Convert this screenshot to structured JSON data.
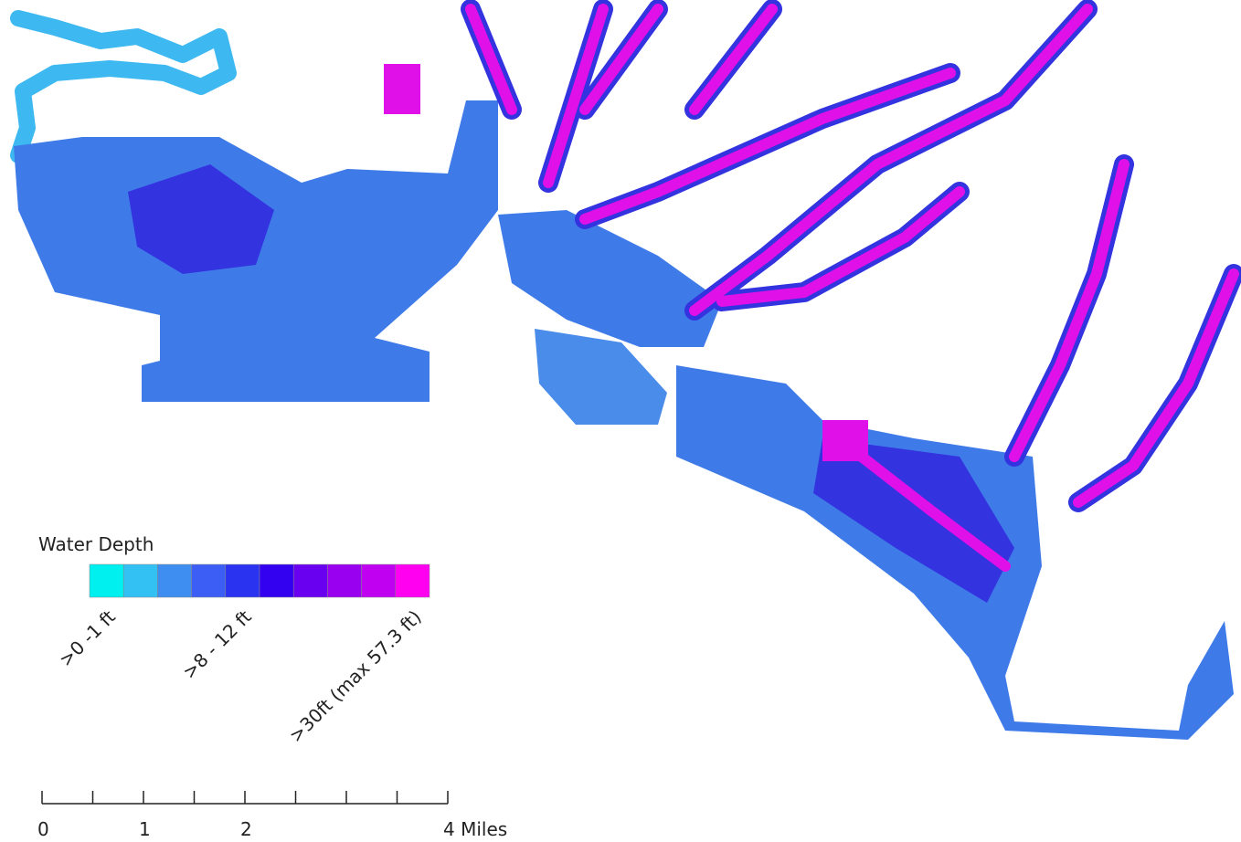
{
  "legend": {
    "title": "Water Depth",
    "colors": [
      "#00f0f0",
      "#33c0f2",
      "#3d8ef0",
      "#3d5ef5",
      "#2a34f0",
      "#3300f0",
      "#6a00f0",
      "#9a00f0",
      "#c000f0",
      "#ff00f0"
    ],
    "labels": [
      {
        "index": 0,
        "text": ">0 -1 ft"
      },
      {
        "index": 4,
        "text": ">8 - 12 ft"
      },
      {
        "index": 9,
        "text": ">30ft (max 57.3 ft)"
      }
    ]
  },
  "scale_bar": {
    "max": 4,
    "divisions": 8,
    "labels": [
      {
        "value": 0,
        "label": "0"
      },
      {
        "value": 1,
        "label": "1"
      },
      {
        "value": 2,
        "label": "2"
      },
      {
        "value": 4,
        "label": "4 Miles"
      }
    ]
  }
}
